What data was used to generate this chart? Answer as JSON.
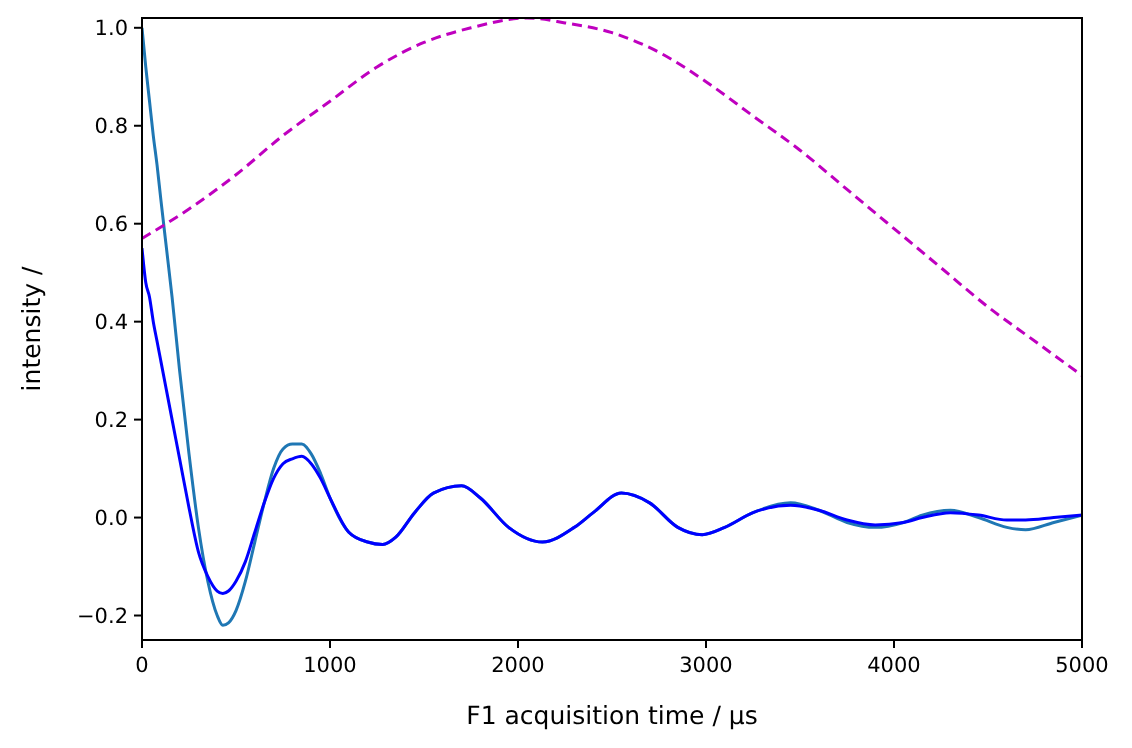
{
  "chart_data": {
    "type": "line",
    "xlabel": "F1 acquisition time / μs",
    "ylabel": "intensity /",
    "xlim": [
      0,
      5000
    ],
    "ylim": [
      -0.25,
      1.02
    ],
    "xticks": [
      0,
      1000,
      2000,
      3000,
      4000,
      5000
    ],
    "yticks": [
      {
        "value": -0.2,
        "label": "−0.2"
      },
      {
        "value": 0,
        "label": "0.0"
      },
      0.2,
      0.4,
      0.6,
      0.8,
      {
        "value": 1,
        "label": "1.0"
      }
    ],
    "grid": false,
    "series": [
      {
        "color": "#1f77b4",
        "x": [
          0,
          20,
          40,
          60,
          80,
          100,
          130,
          160,
          200,
          250,
          300,
          350,
          400,
          430,
          460,
          500,
          550,
          600,
          650,
          700,
          750,
          800,
          850,
          900,
          950,
          1000,
          1100,
          1200,
          1280,
          1350,
          1450,
          1550,
          1700,
          1800,
          1950,
          2130,
          2300,
          2400,
          2550,
          2700,
          2850,
          2980,
          3100,
          3250,
          3450,
          3600,
          3750,
          3900,
          4050,
          4150,
          4300,
          4450,
          4600,
          4700,
          4850,
          5000
        ],
        "values": [
          1.0,
          0.92,
          0.85,
          0.78,
          0.72,
          0.65,
          0.55,
          0.45,
          0.3,
          0.13,
          -0.02,
          -0.13,
          -0.2,
          -0.22,
          -0.215,
          -0.19,
          -0.13,
          -0.05,
          0.03,
          0.1,
          0.14,
          0.15,
          0.15,
          0.13,
          0.09,
          0.04,
          -0.03,
          -0.05,
          -0.055,
          -0.04,
          0.01,
          0.05,
          0.065,
          0.04,
          -0.02,
          -0.05,
          -0.02,
          0.01,
          0.05,
          0.03,
          -0.02,
          -0.035,
          -0.02,
          0.01,
          0.03,
          0.015,
          -0.01,
          -0.02,
          -0.01,
          0.005,
          0.015,
          0.0,
          -0.02,
          -0.025,
          -0.01,
          0.005
        ]
      },
      {
        "color": "#0000ff",
        "x": [
          0,
          20,
          40,
          60,
          80,
          100,
          130,
          160,
          200,
          250,
          300,
          350,
          400,
          430,
          460,
          500,
          550,
          600,
          650,
          700,
          750,
          800,
          850,
          900,
          950,
          1000,
          1100,
          1200,
          1280,
          1350,
          1450,
          1550,
          1700,
          1800,
          1950,
          2130,
          2300,
          2400,
          2550,
          2700,
          2850,
          2980,
          3100,
          3250,
          3450,
          3600,
          3750,
          3900,
          4050,
          4150,
          4300,
          4450,
          4600,
          4700,
          4850,
          5000
        ],
        "values": [
          0.55,
          0.48,
          0.45,
          0.4,
          0.36,
          0.32,
          0.26,
          0.2,
          0.12,
          0.02,
          -0.07,
          -0.12,
          -0.15,
          -0.155,
          -0.15,
          -0.13,
          -0.09,
          -0.03,
          0.03,
          0.08,
          0.11,
          0.12,
          0.125,
          0.11,
          0.08,
          0.04,
          -0.03,
          -0.05,
          -0.055,
          -0.04,
          0.01,
          0.05,
          0.065,
          0.04,
          -0.02,
          -0.05,
          -0.02,
          0.01,
          0.05,
          0.03,
          -0.02,
          -0.035,
          -0.02,
          0.01,
          0.025,
          0.015,
          -0.005,
          -0.015,
          -0.01,
          0.0,
          0.01,
          0.005,
          -0.005,
          -0.005,
          0.0,
          0.005
        ]
      },
      {
        "color": "#bf00bf",
        "line_style": "dashed",
        "x": [
          0,
          250,
          500,
          750,
          1000,
          1250,
          1500,
          1750,
          2050,
          2250,
          2500,
          2750,
          3000,
          3250,
          3500,
          3750,
          4000,
          4250,
          4500,
          4750,
          5000
        ],
        "values": [
          0.57,
          0.63,
          0.7,
          0.78,
          0.85,
          0.92,
          0.97,
          1.0,
          1.02,
          1.01,
          0.99,
          0.95,
          0.89,
          0.82,
          0.75,
          0.67,
          0.59,
          0.51,
          0.43,
          0.36,
          0.29
        ]
      }
    ]
  }
}
